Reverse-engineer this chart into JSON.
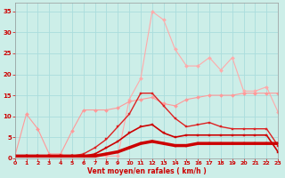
{
  "x": [
    0,
    1,
    2,
    3,
    4,
    5,
    6,
    7,
    8,
    9,
    10,
    11,
    12,
    13,
    14,
    15,
    16,
    17,
    18,
    19,
    20,
    21,
    22,
    23
  ],
  "series": [
    {
      "name": "lightest_pink_peak35",
      "color": "#ffaaaa",
      "linewidth": 0.8,
      "marker": "D",
      "markersize": 2.0,
      "values": [
        0.5,
        0.5,
        0.5,
        0.5,
        0.5,
        0.5,
        0.5,
        0.5,
        0.5,
        0.5,
        14.0,
        19.0,
        35.0,
        33.0,
        26.0,
        22.0,
        22.0,
        24.0,
        21.0,
        24.0,
        16.0,
        16.0,
        17.0,
        11.0
      ]
    },
    {
      "name": "medium_pink_plateau15",
      "color": "#ff9999",
      "linewidth": 0.8,
      "marker": "D",
      "markersize": 2.0,
      "values": [
        0.5,
        10.5,
        7.0,
        1.0,
        1.0,
        6.5,
        11.5,
        11.5,
        11.5,
        12.0,
        13.5,
        14.0,
        14.5,
        13.0,
        12.5,
        14.0,
        14.5,
        15.0,
        15.0,
        15.0,
        15.5,
        15.5,
        15.5,
        15.5
      ]
    },
    {
      "name": "dark_red_peak15_drop",
      "color": "#dd2222",
      "linewidth": 1.0,
      "marker": "s",
      "markersize": 2.0,
      "values": [
        0.5,
        0.5,
        0.5,
        0.5,
        0.5,
        0.5,
        1.0,
        2.5,
        4.5,
        7.5,
        10.5,
        15.5,
        15.5,
        12.5,
        9.5,
        7.5,
        8.0,
        8.5,
        7.5,
        7.0,
        7.0,
        7.0,
        7.0,
        3.0
      ]
    },
    {
      "name": "dark_red_smaller",
      "color": "#cc0000",
      "linewidth": 1.2,
      "marker": "s",
      "markersize": 2.0,
      "values": [
        0.5,
        0.5,
        0.5,
        0.5,
        0.5,
        0.5,
        0.5,
        1.0,
        2.5,
        4.0,
        6.0,
        7.5,
        8.0,
        6.0,
        5.0,
        5.5,
        5.5,
        5.5,
        5.5,
        5.5,
        5.5,
        5.5,
        5.5,
        1.5
      ]
    },
    {
      "name": "dark_red_thick_flat",
      "color": "#cc0000",
      "linewidth": 2.5,
      "marker": "s",
      "markersize": 2.0,
      "values": [
        0.5,
        0.5,
        0.5,
        0.5,
        0.5,
        0.5,
        0.5,
        0.5,
        1.0,
        1.5,
        2.5,
        3.5,
        4.0,
        3.5,
        3.0,
        3.0,
        3.5,
        3.5,
        3.5,
        3.5,
        3.5,
        3.5,
        3.5,
        3.5
      ]
    }
  ],
  "xlim": [
    0,
    23
  ],
  "ylim": [
    0,
    37
  ],
  "yticks": [
    0,
    5,
    10,
    15,
    20,
    25,
    30,
    35
  ],
  "xticks": [
    0,
    1,
    2,
    3,
    4,
    5,
    6,
    7,
    8,
    9,
    10,
    11,
    12,
    13,
    14,
    15,
    16,
    17,
    18,
    19,
    20,
    21,
    22,
    23
  ],
  "xlabel": "Vent moyen/en rafales ( km/h )",
  "background_color": "#cceee8",
  "grid_color": "#aadddd",
  "tick_color": "#cc0000",
  "label_color": "#cc0000"
}
